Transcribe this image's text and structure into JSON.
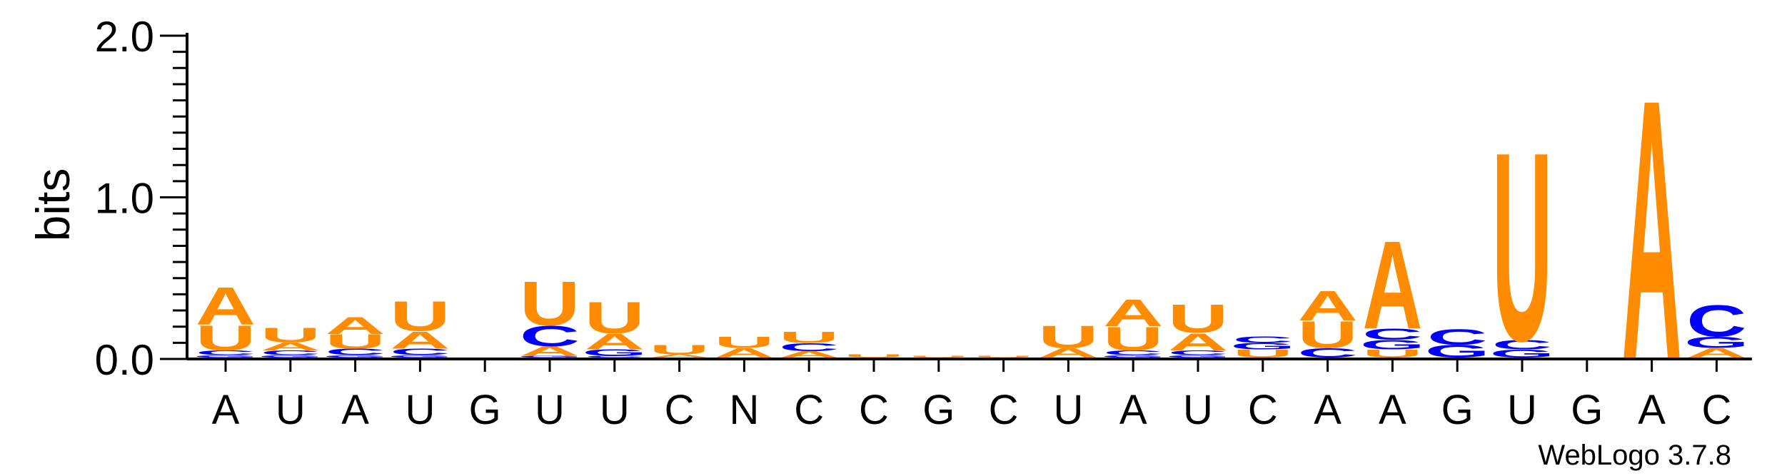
{
  "chart_data": {
    "type": "sequence-logo",
    "ylabel": "bits",
    "ylim": [
      0,
      2.0
    ],
    "yticks": [
      "0.0",
      "1.0",
      "2.0"
    ],
    "positions": [
      {
        "label": "A",
        "stack": [
          {
            "b": "G",
            "h": 0.015
          },
          {
            "b": "C",
            "h": 0.03
          },
          {
            "b": "U",
            "h": 0.16
          },
          {
            "b": "A",
            "h": 0.24
          }
        ]
      },
      {
        "label": "U",
        "stack": [
          {
            "b": "G",
            "h": 0.015
          },
          {
            "b": "C",
            "h": 0.03
          },
          {
            "b": "A",
            "h": 0.05
          },
          {
            "b": "U",
            "h": 0.09
          }
        ]
      },
      {
        "label": "A",
        "stack": [
          {
            "b": "G",
            "h": 0.015
          },
          {
            "b": "C",
            "h": 0.04
          },
          {
            "b": "U",
            "h": 0.09
          },
          {
            "b": "A",
            "h": 0.11
          }
        ]
      },
      {
        "label": "U",
        "stack": [
          {
            "b": "G",
            "h": 0.015
          },
          {
            "b": "C",
            "h": 0.04
          },
          {
            "b": "A",
            "h": 0.11
          },
          {
            "b": "U",
            "h": 0.19
          }
        ]
      },
      {
        "label": "G",
        "stack": []
      },
      {
        "label": "U",
        "stack": [
          {
            "b": "G",
            "h": 0.01
          },
          {
            "b": "A",
            "h": 0.06
          },
          {
            "b": "C",
            "h": 0.13
          },
          {
            "b": "U",
            "h": 0.28
          }
        ]
      },
      {
        "label": "U",
        "stack": [
          {
            "b": "C",
            "h": 0.01
          },
          {
            "b": "G",
            "h": 0.04
          },
          {
            "b": "A",
            "h": 0.1
          },
          {
            "b": "U",
            "h": 0.2
          }
        ]
      },
      {
        "label": "C",
        "stack": [
          {
            "b": "A",
            "h": 0.02
          },
          {
            "b": "U",
            "h": 0.06
          }
        ]
      },
      {
        "label": "N",
        "stack": [
          {
            "b": "A",
            "h": 0.06
          },
          {
            "b": "U",
            "h": 0.07
          }
        ]
      },
      {
        "label": "C",
        "stack": [
          {
            "b": "A",
            "h": 0.04
          },
          {
            "b": "C",
            "h": 0.05
          },
          {
            "b": "U",
            "h": 0.07
          }
        ]
      },
      {
        "label": "C",
        "stack": [
          {
            "b": "U",
            "h": 0.02
          }
        ]
      },
      {
        "label": "G",
        "stack": [
          {
            "b": "U",
            "h": 0.01
          }
        ]
      },
      {
        "label": "C",
        "stack": [
          {
            "b": "U",
            "h": 0.01
          }
        ]
      },
      {
        "label": "U",
        "stack": [
          {
            "b": "A",
            "h": 0.06
          },
          {
            "b": "U",
            "h": 0.14
          }
        ]
      },
      {
        "label": "A",
        "stack": [
          {
            "b": "G",
            "h": 0.015
          },
          {
            "b": "C",
            "h": 0.03
          },
          {
            "b": "U",
            "h": 0.15
          },
          {
            "b": "A",
            "h": 0.17
          }
        ]
      },
      {
        "label": "U",
        "stack": [
          {
            "b": "G",
            "h": 0.015
          },
          {
            "b": "C",
            "h": 0.03
          },
          {
            "b": "A",
            "h": 0.11
          },
          {
            "b": "U",
            "h": 0.18
          }
        ]
      },
      {
        "label": "C",
        "stack": [
          {
            "b": "U",
            "h": 0.05
          },
          {
            "b": "G",
            "h": 0.04
          },
          {
            "b": "C",
            "h": 0.04
          }
        ]
      },
      {
        "label": "A",
        "stack": [
          {
            "b": "C",
            "h": 0.06
          },
          {
            "b": "U",
            "h": 0.17
          },
          {
            "b": "A",
            "h": 0.19
          }
        ]
      },
      {
        "label": "A",
        "stack": [
          {
            "b": "U",
            "h": 0.05
          },
          {
            "b": "G",
            "h": 0.06
          },
          {
            "b": "C",
            "h": 0.07
          },
          {
            "b": "A",
            "h": 0.56
          }
        ]
      },
      {
        "label": "G",
        "stack": [
          {
            "b": "G",
            "h": 0.08
          },
          {
            "b": "C",
            "h": 0.1
          }
        ]
      },
      {
        "label": "U",
        "stack": [
          {
            "b": "G",
            "h": 0.05
          },
          {
            "b": "C",
            "h": 0.06
          },
          {
            "b": "U",
            "h": 1.2
          }
        ]
      },
      {
        "label": "G",
        "stack": []
      },
      {
        "label": "A",
        "stack": [
          {
            "b": "A",
            "h": 1.65
          }
        ]
      },
      {
        "label": "C",
        "stack": [
          {
            "b": "A",
            "h": 0.06
          },
          {
            "b": "G",
            "h": 0.07
          },
          {
            "b": "C",
            "h": 0.2
          }
        ]
      }
    ],
    "colors": {
      "A": "#ff8c00",
      "U": "#ff8c00",
      "C": "#0000ff",
      "G": "#0000ff"
    },
    "footer": "WebLogo 3.7.8"
  }
}
